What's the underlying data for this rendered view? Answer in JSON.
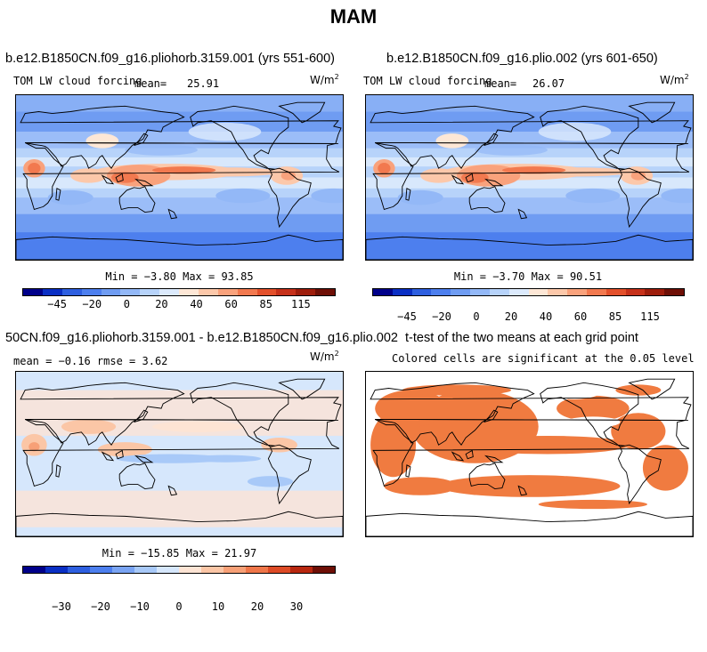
{
  "figure_title": "MAM",
  "panels": [
    {
      "title": "b.e12.B1850CN.f09_g16.pliohorb.3159.001 (yrs 551-600)",
      "left_label": "TOM LW cloud forcing",
      "mean_label": "mean=",
      "mean_value": "25.91",
      "units": "W/m",
      "units_sup": "2",
      "min_max": "Min =  −3.80 Max =  93.85",
      "colorbar_labels": [
        "−45",
        "−20",
        "0",
        "20",
        "40",
        "60",
        "85",
        "115"
      ]
    },
    {
      "title": "b.e12.B1850CN.f09_g16.plio.002 (yrs 601-650)",
      "left_label": "TOM LW cloud forcing",
      "mean_label": "mean=",
      "mean_value": "26.07",
      "units": "W/m",
      "units_sup": "2",
      "min_max": "Min =  −3.70 Max =  90.51",
      "colorbar_labels": [
        "−45",
        "−20",
        "0",
        "20",
        "40",
        "60",
        "85",
        "115"
      ]
    },
    {
      "title": "50CN.f09_g16.pliohorb.3159.001 - b.e12.B1850CN.f09_g16.plio.002",
      "stats_line": "mean =  −0.16     rmse =    3.62",
      "units": "W/m",
      "units_sup": "2",
      "min_max": "Min = −15.85 Max =  21.97",
      "colorbar_labels": [
        "−30",
        "−20",
        "−10",
        "0",
        "10",
        "20",
        "30"
      ]
    },
    {
      "title": "t-test of the two means at each grid point",
      "subtitle": "Colored cells are significant at the 0.05 level"
    }
  ],
  "colors": {
    "abs_scale": [
      "#00008a",
      "#0a2fc4",
      "#2e5fe0",
      "#4d7fee",
      "#6f9cf2",
      "#93b8f7",
      "#b7d3fa",
      "#dceafc",
      "#fde7d6",
      "#fcc8aa",
      "#f9a27c",
      "#f2794f",
      "#e3502b",
      "#c6311a",
      "#9e1d0c",
      "#6e0f06"
    ],
    "diff_scale": [
      "#00008a",
      "#0a2fc4",
      "#2e5fe0",
      "#4d7fee",
      "#7aa4f3",
      "#a8c9f8",
      "#d6e7fc",
      "#fde4d4",
      "#fbc6a6",
      "#f7a077",
      "#ef7649",
      "#dd4b26",
      "#b8270f",
      "#6e0f06"
    ],
    "significant": "#f07b40",
    "ocean_blue": "#c6dcf8",
    "continent_outline": "#000000"
  }
}
